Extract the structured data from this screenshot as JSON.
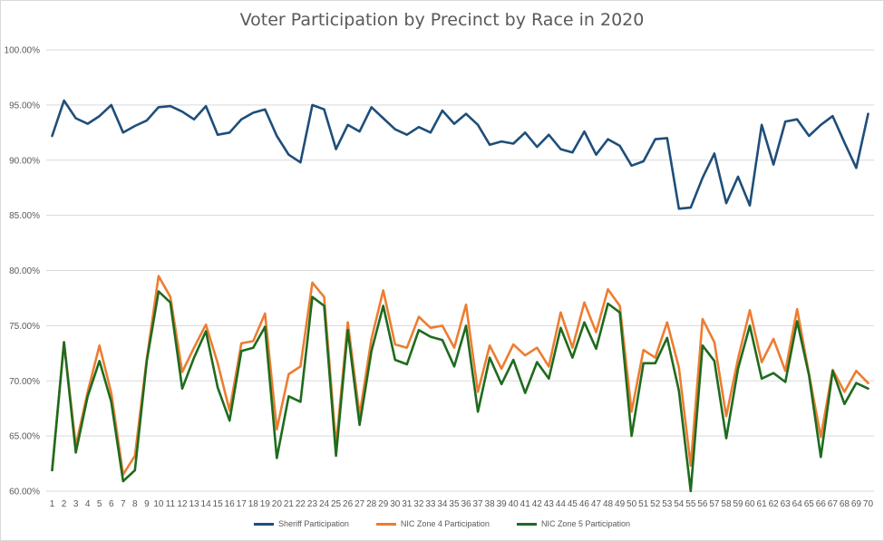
{
  "chart_data": {
    "type": "line",
    "title": "Voter Participation by Precinct by Race in 2020",
    "xlabel": "",
    "ylabel": "",
    "ylim": [
      60,
      100
    ],
    "ytick_step": 5,
    "ytick_format": "percent_2dp",
    "grid": true,
    "legend_position": "bottom",
    "x": [
      1,
      2,
      3,
      4,
      5,
      6,
      7,
      8,
      9,
      10,
      11,
      12,
      13,
      14,
      15,
      16,
      17,
      18,
      19,
      20,
      21,
      22,
      23,
      24,
      25,
      26,
      27,
      28,
      29,
      30,
      31,
      32,
      33,
      34,
      35,
      36,
      37,
      38,
      39,
      40,
      41,
      42,
      43,
      44,
      45,
      46,
      47,
      48,
      49,
      50,
      51,
      52,
      53,
      54,
      55,
      56,
      57,
      58,
      59,
      60,
      61,
      62,
      63,
      64,
      65,
      66,
      67,
      68,
      69,
      70
    ],
    "series": [
      {
        "name": "Sheriff Participation",
        "color": "#1f4e79",
        "values": [
          92.2,
          95.4,
          93.8,
          93.3,
          94.0,
          95.0,
          92.5,
          93.1,
          93.6,
          94.8,
          94.9,
          94.4,
          93.7,
          94.9,
          92.3,
          92.5,
          93.7,
          94.3,
          94.6,
          92.2,
          90.5,
          89.8,
          95.0,
          94.6,
          91.0,
          93.2,
          92.6,
          94.8,
          93.8,
          92.8,
          92.3,
          93.0,
          92.5,
          94.5,
          93.3,
          94.2,
          93.2,
          91.4,
          91.7,
          91.5,
          92.5,
          91.2,
          92.3,
          91.0,
          90.7,
          92.6,
          90.5,
          91.9,
          91.3,
          89.5,
          89.9,
          91.9,
          92.0,
          85.6,
          85.7,
          88.4,
          90.6,
          86.1,
          88.5,
          85.9,
          93.2,
          89.6,
          93.5,
          93.7,
          92.2,
          93.2,
          94.0,
          91.6,
          89.3,
          94.2
        ]
      },
      {
        "name": "NIC Zone 4 Participation",
        "color": "#ed7d31",
        "values": [
          61.9,
          73.5,
          64.1,
          69.0,
          73.2,
          68.9,
          61.5,
          63.2,
          72.0,
          79.5,
          77.6,
          70.8,
          73.0,
          75.1,
          71.6,
          67.3,
          73.4,
          73.6,
          76.1,
          65.6,
          70.6,
          71.3,
          78.9,
          77.6,
          64.1,
          75.3,
          66.9,
          73.8,
          78.2,
          73.3,
          73.0,
          75.8,
          74.8,
          75.0,
          73.0,
          76.9,
          69.0,
          73.2,
          71.1,
          73.3,
          72.3,
          73.0,
          71.3,
          76.2,
          73.0,
          77.1,
          74.4,
          78.3,
          76.8,
          67.2,
          72.8,
          72.1,
          75.3,
          71.2,
          62.3,
          75.6,
          73.5,
          66.8,
          72.0,
          76.4,
          71.7,
          73.8,
          70.9,
          76.5,
          70.6,
          64.9,
          71.0,
          69.0,
          70.9,
          69.8
        ]
      },
      {
        "name": "NIC Zone 5 Participation",
        "color": "#1e6b1e",
        "values": [
          61.9,
          73.5,
          63.5,
          68.6,
          71.8,
          68.1,
          60.9,
          61.9,
          71.8,
          78.1,
          77.1,
          69.3,
          72.1,
          74.5,
          69.4,
          66.4,
          72.7,
          73.0,
          74.9,
          63.0,
          68.6,
          68.1,
          77.6,
          76.8,
          63.2,
          74.6,
          66.0,
          72.7,
          76.8,
          71.9,
          71.5,
          74.6,
          74.0,
          73.7,
          71.3,
          75.0,
          67.2,
          72.1,
          69.7,
          71.9,
          68.9,
          71.7,
          70.2,
          74.8,
          72.1,
          75.3,
          72.9,
          77.0,
          76.2,
          65.0,
          71.6,
          71.6,
          73.9,
          69.1,
          60.0,
          73.2,
          71.8,
          64.8,
          71.1,
          75.0,
          70.2,
          70.7,
          69.9,
          75.4,
          70.5,
          63.1,
          70.9,
          67.9,
          69.8,
          69.3
        ]
      }
    ]
  }
}
